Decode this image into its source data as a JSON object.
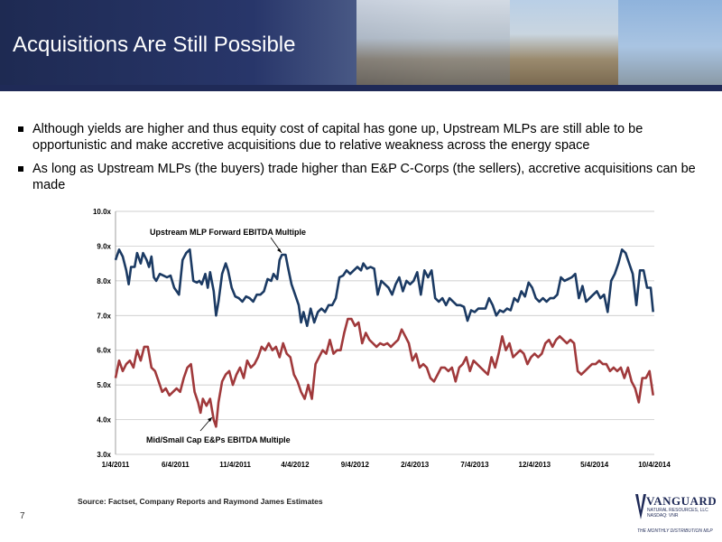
{
  "slide": {
    "title": "Acquisitions Are Still Possible",
    "bullets": [
      "Although yields are higher and thus equity cost of capital has gone up, Upstream MLPs are still able to be opportunistic and make accretive acquisitions due to relative weakness across the energy space",
      "As long as Upstream MLPs (the buyers) trade higher than E&P C-Corps (the sellers), accretive acquisitions can be made"
    ],
    "source": "Source: Factset, Company Reports and Raymond James Estimates",
    "page_number": "7",
    "logo": {
      "name": "VANGUARD",
      "subtitle": "NATURAL RESOURCES, LLC NASDAQ: VNR",
      "tagline": "THE MONTHLY DISTRIBUTION MLP"
    }
  },
  "colors": {
    "banner": "#1f2a57",
    "mlp_series": "#1b3a63",
    "ep_series": "#a0393b",
    "grid": "#bfbfbf"
  },
  "chart_data": {
    "type": "line",
    "xlabel": "",
    "ylabel": "",
    "x_tick_labels": [
      "1/4/2011",
      "6/4/2011",
      "11/4/2011",
      "4/4/2012",
      "9/4/2012",
      "2/4/2013",
      "7/4/2013",
      "12/4/2013",
      "5/4/2014",
      "10/4/2014"
    ],
    "y_tick_labels": [
      "3.0x",
      "4.0x",
      "5.0x",
      "6.0x",
      "7.0x",
      "8.0x",
      "9.0x",
      "10.0x"
    ],
    "ylim": [
      3,
      10
    ],
    "grid": true,
    "x_unit": "months since 1/4/2011",
    "series": [
      {
        "name": "Upstream MLP Forward EBITDA Multiple",
        "color": "#1b3a63",
        "points": [
          [
            0,
            8.6
          ],
          [
            0.3,
            8.9
          ],
          [
            0.6,
            8.7
          ],
          [
            0.9,
            8.3
          ],
          [
            1.1,
            7.9
          ],
          [
            1.3,
            8.4
          ],
          [
            1.6,
            8.4
          ],
          [
            1.8,
            8.8
          ],
          [
            2.1,
            8.5
          ],
          [
            2.3,
            8.8
          ],
          [
            2.6,
            8.6
          ],
          [
            2.8,
            8.4
          ],
          [
            3.0,
            8.7
          ],
          [
            3.2,
            8.1
          ],
          [
            3.4,
            8.0
          ],
          [
            3.7,
            8.2
          ],
          [
            4.0,
            8.15
          ],
          [
            4.3,
            8.1
          ],
          [
            4.6,
            8.15
          ],
          [
            4.9,
            7.8
          ],
          [
            5.1,
            7.7
          ],
          [
            5.3,
            7.6
          ],
          [
            5.6,
            8.6
          ],
          [
            5.9,
            8.8
          ],
          [
            6.2,
            8.9
          ],
          [
            6.5,
            8.0
          ],
          [
            6.8,
            7.95
          ],
          [
            7.0,
            8.0
          ],
          [
            7.2,
            7.9
          ],
          [
            7.5,
            8.2
          ],
          [
            7.7,
            7.8
          ],
          [
            7.9,
            8.25
          ],
          [
            8.2,
            7.7
          ],
          [
            8.4,
            7.0
          ],
          [
            8.6,
            7.4
          ],
          [
            8.9,
            8.2
          ],
          [
            9.2,
            8.5
          ],
          [
            9.4,
            8.3
          ],
          [
            9.7,
            7.8
          ],
          [
            10.0,
            7.55
          ],
          [
            10.3,
            7.5
          ],
          [
            10.6,
            7.4
          ],
          [
            10.9,
            7.55
          ],
          [
            11.2,
            7.5
          ],
          [
            11.5,
            7.4
          ],
          [
            11.8,
            7.6
          ],
          [
            12.1,
            7.6
          ],
          [
            12.4,
            7.7
          ],
          [
            12.7,
            8.05
          ],
          [
            13.0,
            8.0
          ],
          [
            13.2,
            8.2
          ],
          [
            13.5,
            8.05
          ],
          [
            13.7,
            8.6
          ],
          [
            13.9,
            8.75
          ],
          [
            14.2,
            8.75
          ],
          [
            14.4,
            8.4
          ],
          [
            14.7,
            7.9
          ],
          [
            15.0,
            7.6
          ],
          [
            15.3,
            7.3
          ],
          [
            15.5,
            6.8
          ],
          [
            15.7,
            7.1
          ],
          [
            16.0,
            6.7
          ],
          [
            16.3,
            7.2
          ],
          [
            16.6,
            6.8
          ],
          [
            16.9,
            7.1
          ],
          [
            17.2,
            7.2
          ],
          [
            17.5,
            7.1
          ],
          [
            17.8,
            7.3
          ],
          [
            18.1,
            7.3
          ],
          [
            18.4,
            7.5
          ],
          [
            18.7,
            8.1
          ],
          [
            19.0,
            8.15
          ],
          [
            19.3,
            8.3
          ],
          [
            19.6,
            8.2
          ],
          [
            19.9,
            8.3
          ],
          [
            20.2,
            8.4
          ],
          [
            20.5,
            8.3
          ],
          [
            20.7,
            8.5
          ],
          [
            21.0,
            8.35
          ],
          [
            21.3,
            8.4
          ],
          [
            21.6,
            8.35
          ],
          [
            21.9,
            7.6
          ],
          [
            22.2,
            8.0
          ],
          [
            22.5,
            7.9
          ],
          [
            22.8,
            7.8
          ],
          [
            23.1,
            7.6
          ],
          [
            23.4,
            7.9
          ],
          [
            23.7,
            8.1
          ],
          [
            24.0,
            7.7
          ],
          [
            24.3,
            8.0
          ],
          [
            24.6,
            7.9
          ],
          [
            24.9,
            8.0
          ],
          [
            25.2,
            8.25
          ],
          [
            25.5,
            7.6
          ],
          [
            25.8,
            8.3
          ],
          [
            26.1,
            8.1
          ],
          [
            26.4,
            8.3
          ],
          [
            26.7,
            7.5
          ],
          [
            27.0,
            7.4
          ],
          [
            27.3,
            7.5
          ],
          [
            27.6,
            7.3
          ],
          [
            27.9,
            7.5
          ],
          [
            28.2,
            7.4
          ],
          [
            28.5,
            7.3
          ],
          [
            28.8,
            7.3
          ],
          [
            29.1,
            7.25
          ],
          [
            29.4,
            6.85
          ],
          [
            29.7,
            7.15
          ],
          [
            30.0,
            7.1
          ],
          [
            30.3,
            7.2
          ],
          [
            30.6,
            7.2
          ],
          [
            30.9,
            7.2
          ],
          [
            31.2,
            7.5
          ],
          [
            31.5,
            7.3
          ],
          [
            31.8,
            7.0
          ],
          [
            32.1,
            7.15
          ],
          [
            32.4,
            7.1
          ],
          [
            32.7,
            7.2
          ],
          [
            33.0,
            7.15
          ],
          [
            33.3,
            7.5
          ],
          [
            33.6,
            7.4
          ],
          [
            33.9,
            7.7
          ],
          [
            34.2,
            7.55
          ],
          [
            34.5,
            7.95
          ],
          [
            34.8,
            7.8
          ],
          [
            35.1,
            7.5
          ],
          [
            35.4,
            7.4
          ],
          [
            35.7,
            7.5
          ],
          [
            36.0,
            7.4
          ],
          [
            36.3,
            7.5
          ],
          [
            36.6,
            7.5
          ],
          [
            36.9,
            7.6
          ],
          [
            37.2,
            8.1
          ],
          [
            37.5,
            8.0
          ],
          [
            37.8,
            8.05
          ],
          [
            38.1,
            8.1
          ],
          [
            38.4,
            8.2
          ],
          [
            38.7,
            7.5
          ],
          [
            39.0,
            7.85
          ],
          [
            39.3,
            7.4
          ],
          [
            39.6,
            7.5
          ],
          [
            39.9,
            7.6
          ],
          [
            40.2,
            7.7
          ],
          [
            40.5,
            7.5
          ],
          [
            40.8,
            7.6
          ],
          [
            41.1,
            7.1
          ],
          [
            41.4,
            8.0
          ],
          [
            41.7,
            8.2
          ],
          [
            42.0,
            8.5
          ],
          [
            42.3,
            8.9
          ],
          [
            42.6,
            8.8
          ],
          [
            42.9,
            8.5
          ],
          [
            43.2,
            8.2
          ],
          [
            43.5,
            7.3
          ],
          [
            43.8,
            8.3
          ],
          [
            44.1,
            8.3
          ],
          [
            44.4,
            7.8
          ],
          [
            44.7,
            7.8
          ],
          [
            44.9,
            7.1
          ]
        ]
      },
      {
        "name": "Mid/Small Cap E&Ps EBITDA Multiple",
        "color": "#a0393b",
        "points": [
          [
            0,
            5.2
          ],
          [
            0.3,
            5.7
          ],
          [
            0.6,
            5.4
          ],
          [
            0.9,
            5.6
          ],
          [
            1.2,
            5.7
          ],
          [
            1.5,
            5.5
          ],
          [
            1.8,
            6.0
          ],
          [
            2.1,
            5.7
          ],
          [
            2.4,
            6.1
          ],
          [
            2.7,
            6.1
          ],
          [
            3.0,
            5.5
          ],
          [
            3.3,
            5.4
          ],
          [
            3.6,
            5.1
          ],
          [
            3.9,
            4.8
          ],
          [
            4.2,
            4.9
          ],
          [
            4.5,
            4.7
          ],
          [
            4.8,
            4.8
          ],
          [
            5.1,
            4.9
          ],
          [
            5.4,
            4.8
          ],
          [
            5.7,
            5.2
          ],
          [
            6.0,
            5.5
          ],
          [
            6.3,
            5.6
          ],
          [
            6.6,
            4.8
          ],
          [
            6.9,
            4.5
          ],
          [
            7.1,
            4.2
          ],
          [
            7.3,
            4.6
          ],
          [
            7.6,
            4.4
          ],
          [
            7.9,
            4.6
          ],
          [
            8.2,
            4.0
          ],
          [
            8.4,
            3.8
          ],
          [
            8.6,
            4.5
          ],
          [
            8.9,
            5.1
          ],
          [
            9.2,
            5.3
          ],
          [
            9.5,
            5.4
          ],
          [
            9.8,
            5.0
          ],
          [
            10.1,
            5.3
          ],
          [
            10.4,
            5.5
          ],
          [
            10.7,
            5.2
          ],
          [
            11.0,
            5.7
          ],
          [
            11.3,
            5.5
          ],
          [
            11.6,
            5.6
          ],
          [
            11.9,
            5.8
          ],
          [
            12.2,
            6.1
          ],
          [
            12.5,
            6.0
          ],
          [
            12.8,
            6.2
          ],
          [
            13.1,
            6.0
          ],
          [
            13.4,
            6.1
          ],
          [
            13.7,
            5.8
          ],
          [
            14.0,
            6.2
          ],
          [
            14.3,
            5.9
          ],
          [
            14.6,
            5.8
          ],
          [
            14.9,
            5.3
          ],
          [
            15.2,
            5.1
          ],
          [
            15.5,
            4.8
          ],
          [
            15.8,
            4.6
          ],
          [
            16.1,
            5.0
          ],
          [
            16.4,
            4.6
          ],
          [
            16.7,
            5.6
          ],
          [
            17.0,
            5.8
          ],
          [
            17.3,
            6.0
          ],
          [
            17.6,
            5.9
          ],
          [
            17.9,
            6.3
          ],
          [
            18.2,
            5.9
          ],
          [
            18.5,
            6.0
          ],
          [
            18.8,
            6.0
          ],
          [
            19.1,
            6.5
          ],
          [
            19.4,
            6.9
          ],
          [
            19.7,
            6.9
          ],
          [
            20.0,
            6.7
          ],
          [
            20.3,
            6.8
          ],
          [
            20.6,
            6.2
          ],
          [
            20.9,
            6.5
          ],
          [
            21.2,
            6.3
          ],
          [
            21.5,
            6.2
          ],
          [
            21.8,
            6.1
          ],
          [
            22.1,
            6.2
          ],
          [
            22.4,
            6.15
          ],
          [
            22.7,
            6.2
          ],
          [
            23.0,
            6.1
          ],
          [
            23.3,
            6.2
          ],
          [
            23.6,
            6.3
          ],
          [
            23.9,
            6.6
          ],
          [
            24.2,
            6.4
          ],
          [
            24.5,
            6.2
          ],
          [
            24.8,
            5.7
          ],
          [
            25.1,
            5.9
          ],
          [
            25.4,
            5.5
          ],
          [
            25.7,
            5.6
          ],
          [
            26.0,
            5.5
          ],
          [
            26.3,
            5.2
          ],
          [
            26.6,
            5.1
          ],
          [
            26.9,
            5.3
          ],
          [
            27.2,
            5.5
          ],
          [
            27.5,
            5.5
          ],
          [
            27.8,
            5.4
          ],
          [
            28.1,
            5.5
          ],
          [
            28.4,
            5.1
          ],
          [
            28.7,
            5.5
          ],
          [
            29.0,
            5.6
          ],
          [
            29.3,
            5.8
          ],
          [
            29.6,
            5.4
          ],
          [
            29.9,
            5.7
          ],
          [
            30.2,
            5.6
          ],
          [
            30.5,
            5.5
          ],
          [
            30.8,
            5.4
          ],
          [
            31.1,
            5.3
          ],
          [
            31.4,
            5.8
          ],
          [
            31.7,
            5.5
          ],
          [
            32.0,
            5.9
          ],
          [
            32.3,
            6.4
          ],
          [
            32.6,
            6.0
          ],
          [
            32.9,
            6.2
          ],
          [
            33.2,
            5.8
          ],
          [
            33.5,
            5.9
          ],
          [
            33.8,
            6.0
          ],
          [
            34.1,
            5.9
          ],
          [
            34.4,
            5.6
          ],
          [
            34.7,
            5.8
          ],
          [
            35.0,
            5.9
          ],
          [
            35.3,
            5.8
          ],
          [
            35.6,
            5.9
          ],
          [
            35.9,
            6.2
          ],
          [
            36.2,
            6.3
          ],
          [
            36.5,
            6.1
          ],
          [
            36.8,
            6.3
          ],
          [
            37.1,
            6.4
          ],
          [
            37.4,
            6.3
          ],
          [
            37.7,
            6.2
          ],
          [
            38.0,
            6.3
          ],
          [
            38.3,
            6.2
          ],
          [
            38.6,
            5.4
          ],
          [
            38.9,
            5.3
          ],
          [
            39.2,
            5.4
          ],
          [
            39.5,
            5.5
          ],
          [
            39.8,
            5.6
          ],
          [
            40.1,
            5.6
          ],
          [
            40.4,
            5.7
          ],
          [
            40.7,
            5.6
          ],
          [
            41.0,
            5.6
          ],
          [
            41.3,
            5.4
          ],
          [
            41.6,
            5.5
          ],
          [
            41.9,
            5.4
          ],
          [
            42.2,
            5.5
          ],
          [
            42.5,
            5.2
          ],
          [
            42.8,
            5.5
          ],
          [
            43.1,
            5.1
          ],
          [
            43.4,
            4.9
          ],
          [
            43.7,
            4.5
          ],
          [
            44.0,
            5.2
          ],
          [
            44.3,
            5.2
          ],
          [
            44.6,
            5.4
          ],
          [
            44.9,
            4.7
          ]
        ]
      }
    ]
  }
}
